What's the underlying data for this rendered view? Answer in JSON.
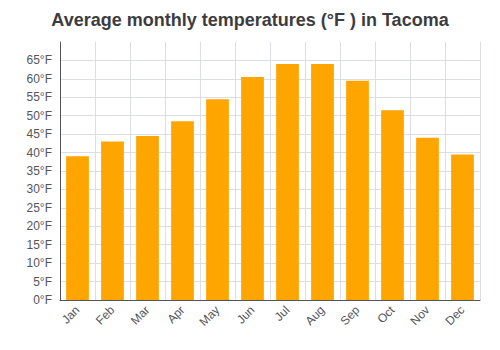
{
  "chart_data": {
    "type": "bar",
    "title": "Average monthly temperatures (°F ) in Tacoma",
    "categories": [
      "Jan",
      "Feb",
      "Mar",
      "Apr",
      "May",
      "Jun",
      "Jul",
      "Aug",
      "Sep",
      "Oct",
      "Nov",
      "Dec"
    ],
    "values": [
      39,
      43,
      44.5,
      48.5,
      54.5,
      60.5,
      64,
      64,
      59.5,
      51.5,
      44,
      39.5
    ],
    "color": "#FFA500",
    "ylim": [
      0,
      70
    ],
    "yticks": [
      {
        "value": 0,
        "label": "0°F"
      },
      {
        "value": 5,
        "label": "5°F"
      },
      {
        "value": 10,
        "label": "10°F"
      },
      {
        "value": 15,
        "label": "15°F"
      },
      {
        "value": 20,
        "label": "20°F"
      },
      {
        "value": 25,
        "label": "25°F"
      },
      {
        "value": 30,
        "label": "30°F"
      },
      {
        "value": 35,
        "label": "35°F"
      },
      {
        "value": 40,
        "label": "40°F"
      },
      {
        "value": 45,
        "label": "45°F"
      },
      {
        "value": 50,
        "label": "50°F"
      },
      {
        "value": 55,
        "label": "55°F"
      },
      {
        "value": 60,
        "label": "60°F"
      },
      {
        "value": 65,
        "label": "65°F"
      }
    ],
    "grid": true
  }
}
